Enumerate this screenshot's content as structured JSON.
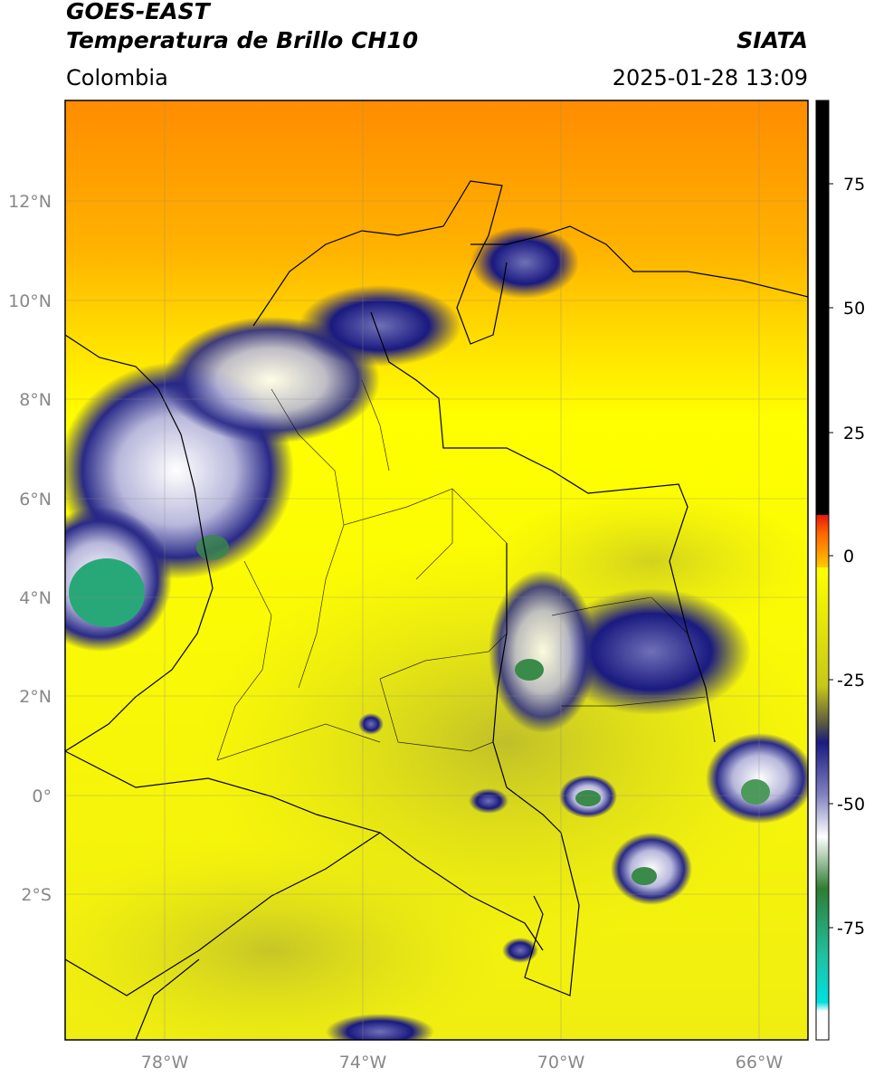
{
  "header": {
    "line1": "GOES-EAST",
    "line2": "Temperatura de Brillo CH10",
    "region": "Colombia",
    "brand": "SIATA",
    "timestamp": "2025-01-28 13:09"
  },
  "map": {
    "lat_ticks": [
      "12°N",
      "10°N",
      "8°N",
      "6°N",
      "4°N",
      "2°N",
      "0°",
      "2°S"
    ],
    "lon_ticks": [
      "78°W",
      "74°W",
      "70°W",
      "66°W"
    ],
    "extent": {
      "lon_min": -80,
      "lon_max": -65,
      "lat_min": -5,
      "lat_max": 14
    }
  },
  "colorbar": {
    "ticks": [
      "75",
      "50",
      "25",
      "0",
      "-25",
      "-50",
      "-75"
    ],
    "colors": {
      "black": "#000000",
      "red": "#e8170c",
      "orange": "#ff9900",
      "yellow": "#ffff00",
      "olive": "#a8a830",
      "navy": "#1a1a80",
      "white": "#ffffff",
      "green": "#2e7d32",
      "teal": "#20c0a0",
      "cyan": "#00e0e0"
    }
  }
}
